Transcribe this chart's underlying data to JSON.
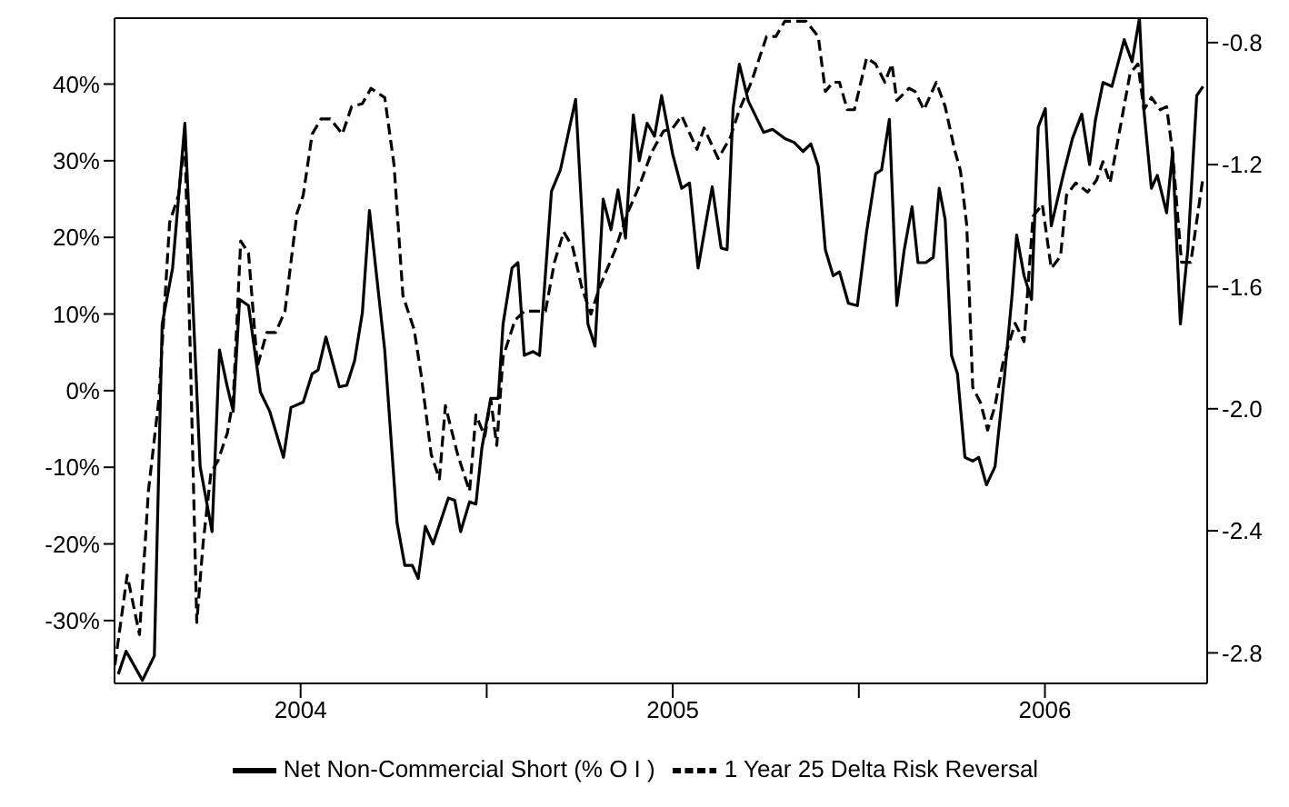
{
  "chart_data": {
    "type": "line",
    "xlim": [
      2004.0,
      2006.936
    ],
    "xticks": [
      {
        "value": 2004.5,
        "label": "2004"
      },
      {
        "value": 2005,
        "label": null
      },
      {
        "value": 2005.5,
        "label": "2005"
      },
      {
        "value": 2006,
        "label": null
      },
      {
        "value": 2006.5,
        "label": "2006"
      }
    ],
    "ylim": [
      -38.2,
      48.6
    ],
    "yticks": [
      {
        "value": -30,
        "label": "-30%"
      },
      {
        "value": -20,
        "label": "-20%"
      },
      {
        "value": -10,
        "label": "-10%"
      },
      {
        "value": 0,
        "label": "0%"
      },
      {
        "value": 10,
        "label": "10%"
      },
      {
        "value": 20,
        "label": "20%"
      },
      {
        "value": 30,
        "label": "30%"
      },
      {
        "value": 40,
        "label": "40%"
      }
    ],
    "y2lim": [
      -2.9,
      -0.72
    ],
    "y2ticks": [
      -2.8,
      -2.4,
      {
        "value": -2.0,
        "label": "-2.0"
      },
      -1.6,
      -1.2,
      -0.8
    ],
    "legend": "bottom",
    "marker": "none",
    "series": [
      {
        "name": "Net Non-Commercial Short (% O I )",
        "color": "#000000",
        "line_style": "solid",
        "x": [
          2004.01,
          2004.031,
          2004.075,
          2004.107,
          2004.128,
          2004.156,
          2004.189,
          2004.23,
          2004.262,
          2004.282,
          2004.303,
          2004.319,
          2004.336,
          2004.36,
          2004.392,
          2004.417,
          2004.454,
          2004.474,
          2004.507,
          2004.531,
          2004.547,
          2004.568,
          2004.604,
          2004.624,
          2004.645,
          2004.666,
          2004.685,
          2004.726,
          2004.759,
          2004.78,
          2004.8,
          2004.816,
          2004.835,
          2004.856,
          2004.897,
          2004.914,
          2004.93,
          2004.954,
          2004.971,
          2004.987,
          2005.011,
          2005.031,
          2005.044,
          2005.068,
          2005.084,
          2005.101,
          2005.125,
          2005.142,
          2005.174,
          2005.198,
          2005.239,
          2005.272,
          2005.291,
          2005.313,
          2005.334,
          2005.353,
          2005.373,
          2005.394,
          2005.41,
          2005.431,
          2005.451,
          2005.47,
          2005.5,
          2005.524,
          2005.545,
          2005.568,
          2005.606,
          2005.63,
          2005.646,
          2005.662,
          2005.679,
          2005.703,
          2005.744,
          2005.768,
          2005.801,
          2005.826,
          2005.85,
          2005.871,
          2005.891,
          2005.91,
          2005.931,
          2005.948,
          2005.972,
          2005.996,
          2006.021,
          2006.045,
          2006.061,
          2006.082,
          2006.102,
          2006.122,
          2006.143,
          2006.159,
          2006.18,
          2006.2,
          2006.216,
          2006.232,
          2006.249,
          2006.265,
          2006.285,
          2006.306,
          2006.322,
          2006.343,
          2006.366,
          2006.392,
          2006.412,
          2006.424,
          2006.444,
          2006.464,
          2006.482,
          2006.501,
          2006.517,
          2006.55,
          2006.574,
          2006.599,
          2006.62,
          2006.636,
          2006.656,
          2006.68,
          2006.713,
          2006.734,
          2006.754,
          2006.766,
          2006.786,
          2006.802,
          2006.827,
          2006.843,
          2006.864,
          2006.884,
          2006.908,
          2006.925
        ],
        "values": [
          -37,
          -34,
          -37.8,
          -34.6,
          8.7,
          16,
          34.9,
          -9.9,
          -18.4,
          5.3,
          0.5,
          -2.7,
          11.9,
          11.1,
          -0.2,
          -2.7,
          -8.7,
          -2.2,
          -1.5,
          2.2,
          2.7,
          7,
          0.5,
          0.7,
          3.9,
          10.2,
          23.5,
          5.3,
          -17.2,
          -22.8,
          -22.8,
          -24.5,
          -17.7,
          -20,
          -14,
          -14.3,
          -18.4,
          -14.5,
          -14.8,
          -7.5,
          -1,
          -1,
          8.7,
          16,
          16.7,
          4.6,
          5.1,
          4.6,
          26,
          28.8,
          38,
          8.7,
          5.8,
          25,
          21,
          26.2,
          19.9,
          36,
          30,
          34.9,
          33.2,
          38.5,
          30.8,
          26.4,
          27.1,
          16,
          26.6,
          18.6,
          18.4,
          36.8,
          42.6,
          37.8,
          33.7,
          34.1,
          32.9,
          32.4,
          31.2,
          32.2,
          29.3,
          18.4,
          15,
          15.5,
          11.4,
          11.1,
          20.8,
          28.3,
          28.8,
          35.4,
          11.1,
          18.4,
          24,
          16.7,
          16.7,
          17.4,
          26.4,
          22.3,
          4.6,
          2.2,
          -8.7,
          -9.2,
          -8.7,
          -12.3,
          -9.9,
          2.2,
          12.6,
          20.3,
          15,
          11.9,
          34.4,
          36.8,
          21.5,
          28.3,
          32.9,
          36.1,
          29.5,
          35.4,
          40.2,
          39.7,
          45.8,
          42.9,
          48.6,
          36.6,
          26.4,
          28.1,
          23.2,
          31.2,
          8.7,
          18.4,
          38.5,
          39.7
        ]
      },
      {
        "name": "1 Year 25 Delta Risk Reversal",
        "color": "#000000",
        "line_style": "dashed",
        "axis": "y2",
        "x": [
          2004.001,
          2004.034,
          2004.067,
          2004.091,
          2004.119,
          2004.148,
          2004.172,
          2004.189,
          2004.205,
          2004.221,
          2004.238,
          2004.259,
          2004.278,
          2004.303,
          2004.319,
          2004.339,
          2004.36,
          2004.384,
          2004.409,
          2004.433,
          2004.458,
          2004.49,
          2004.507,
          2004.531,
          2004.555,
          2004.58,
          2004.612,
          2004.637,
          2004.666,
          2004.689,
          2004.726,
          2004.751,
          2004.775,
          2004.805,
          2004.824,
          2004.851,
          2004.873,
          2004.889,
          2004.922,
          2004.954,
          2004.971,
          2004.995,
          2005.011,
          2005.027,
          2005.044,
          2005.076,
          2005.101,
          2005.158,
          2005.182,
          2005.207,
          2005.231,
          2005.255,
          2005.28,
          2005.304,
          2005.345,
          2005.378,
          2005.41,
          2005.443,
          2005.475,
          2005.5,
          2005.524,
          2005.565,
          2005.584,
          2005.622,
          2005.655,
          2005.679,
          2005.711,
          2005.752,
          2005.777,
          2005.801,
          2005.858,
          2005.891,
          2005.91,
          2005.931,
          2005.948,
          2005.969,
          2005.988,
          2006.021,
          2006.045,
          2006.07,
          2006.089,
          2006.102,
          2006.135,
          2006.151,
          2006.175,
          2006.208,
          2006.232,
          2006.257,
          2006.273,
          2006.29,
          2006.306,
          2006.327,
          2006.346,
          2006.366,
          2006.387,
          2006.42,
          2006.444,
          2006.468,
          2006.493,
          2006.517,
          2006.542,
          2006.558,
          2006.583,
          2006.615,
          2006.639,
          2006.656,
          2006.675,
          2006.705,
          2006.729,
          2006.75,
          2006.766,
          2006.786,
          2006.81,
          2006.827,
          2006.843,
          2006.867,
          2006.892,
          2006.925
        ],
        "values": [
          -2.84,
          -2.545,
          -2.74,
          -2.27,
          -1.97,
          -1.39,
          -1.3,
          -1.11,
          -1.89,
          -2.7,
          -2.44,
          -2.21,
          -2.17,
          -2.08,
          -1.97,
          -1.45,
          -1.49,
          -1.86,
          -1.75,
          -1.75,
          -1.68,
          -1.36,
          -1.3,
          -1.1,
          -1.05,
          -1.05,
          -1.1,
          -1.01,
          -1,
          -0.95,
          -0.98,
          -1.2,
          -1.63,
          -1.74,
          -1.89,
          -2.15,
          -2.23,
          -1.99,
          -2.15,
          -2.27,
          -2.02,
          -2.09,
          -1.97,
          -2.12,
          -1.83,
          -1.71,
          -1.68,
          -1.68,
          -1.52,
          -1.42,
          -1.47,
          -1.6,
          -1.69,
          -1.6,
          -1.48,
          -1.36,
          -1.27,
          -1.16,
          -1.09,
          -1.08,
          -1.04,
          -1.15,
          -1.08,
          -1.18,
          -1.11,
          -1.02,
          -0.93,
          -0.78,
          -0.78,
          -0.73,
          -0.73,
          -0.78,
          -0.96,
          -0.93,
          -0.93,
          -1.02,
          -1.02,
          -0.85,
          -0.87,
          -0.93,
          -0.87,
          -0.99,
          -0.95,
          -0.96,
          -1.02,
          -0.93,
          -1.01,
          -1.15,
          -1.22,
          -1.4,
          -1.93,
          -1.98,
          -2.07,
          -1.99,
          -1.85,
          -1.72,
          -1.78,
          -1.37,
          -1.33,
          -1.54,
          -1.5,
          -1.3,
          -1.26,
          -1.29,
          -1.25,
          -1.19,
          -1.26,
          -1.06,
          -0.9,
          -0.87,
          -1.02,
          -0.98,
          -1.02,
          -1.01,
          -1.16,
          -1.52,
          -1.52,
          -1.24
        ]
      }
    ]
  }
}
